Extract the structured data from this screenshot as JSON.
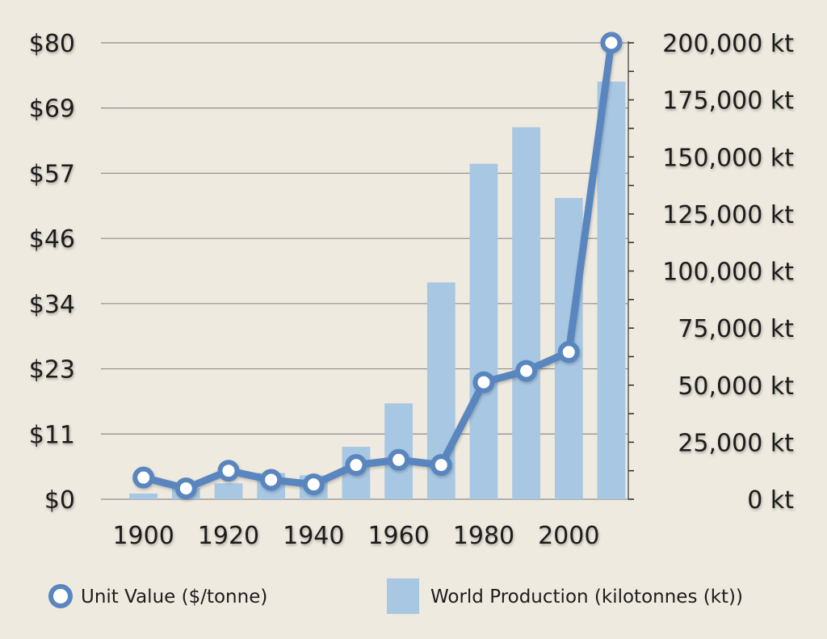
{
  "chart_data": {
    "type": "bar",
    "x": [
      1900,
      1910,
      1920,
      1930,
      1940,
      1950,
      1960,
      1970,
      1980,
      1990,
      2000,
      2010
    ],
    "xlim": [
      1890,
      2014
    ],
    "xticks": [
      1900,
      1920,
      1940,
      1960,
      1980,
      2000
    ],
    "xtick_labels": [
      "1900",
      "1920",
      "1940",
      "1960",
      "1980",
      "2000"
    ],
    "series": [
      {
        "name": "World Production (kilotonnes (kt))",
        "type": "bar",
        "axis": "right",
        "values": [
          2500,
          5000,
          7000,
          11500,
          10500,
          23000,
          42000,
          95000,
          147000,
          163000,
          132000,
          183000
        ]
      },
      {
        "name": "Unit Value ($/tonne)",
        "type": "line",
        "axis": "left",
        "values": [
          3.8,
          1.9,
          5.0,
          3.4,
          2.6,
          6.0,
          6.9,
          6.0,
          20.5,
          22.5,
          25.8,
          80
        ]
      }
    ],
    "y_left": {
      "ylim": [
        0,
        80
      ],
      "ticks": [
        0,
        11.43,
        22.86,
        34.29,
        45.71,
        57.14,
        68.57,
        80
      ],
      "tick_labels": [
        "$0",
        "$11",
        "$23",
        "$34",
        "$46",
        "$57",
        "$69",
        "$80"
      ]
    },
    "y_right": {
      "ylim": [
        0,
        200000
      ],
      "ticks": [
        0,
        25000,
        50000,
        75000,
        100000,
        125000,
        150000,
        175000,
        200000
      ],
      "tick_labels": [
        "0 kt",
        "25,000 kt",
        "50,000 kt",
        "75,000 kt",
        "100,000 kt",
        "125,000 kt",
        "150,000 kt",
        "175,000 kt",
        "200,000 kt"
      ]
    },
    "grid": true,
    "legend_position": "bottom",
    "legend": [
      "Unit Value ($/tonne)",
      "World Production (kilotonnes (kt))"
    ],
    "colors": {
      "bar": "#a7c7e3",
      "line": "#5a86bf",
      "marker_fill": "#ffffff",
      "grid": "#8d8d8d",
      "text": "#1c1c1c",
      "background": "#efeadf"
    }
  }
}
